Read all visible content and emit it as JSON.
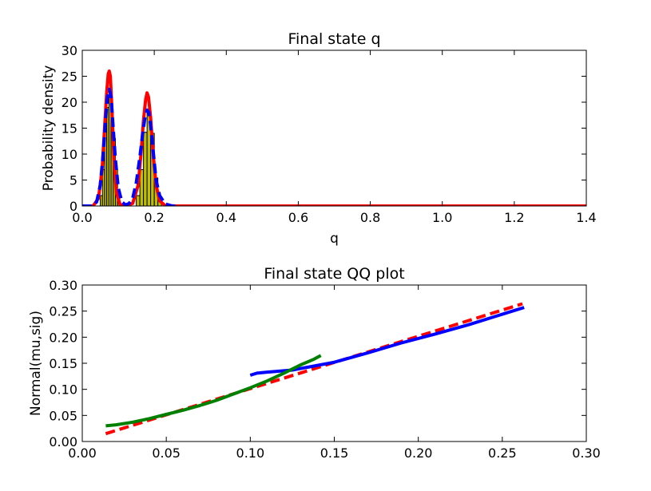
{
  "chart_data": [
    {
      "type": "bar",
      "title": "Final state q",
      "xlabel": "q",
      "ylabel": "Probability density",
      "xlim": [
        0.0,
        1.4
      ],
      "ylim": [
        0,
        30
      ],
      "xticks": [
        "0.0",
        "0.2",
        "0.4",
        "0.6",
        "0.8",
        "1.0",
        "1.2",
        "1.4"
      ],
      "yticks": [
        "0",
        "5",
        "10",
        "15",
        "20",
        "25",
        "30"
      ],
      "grid": false,
      "bar_color": "#bfbf00",
      "bars": [
        {
          "x0": 0.05,
          "x1": 0.056,
          "height": 2
        },
        {
          "x0": 0.056,
          "x1": 0.062,
          "height": 7
        },
        {
          "x0": 0.062,
          "x1": 0.068,
          "height": 15
        },
        {
          "x0": 0.068,
          "x1": 0.074,
          "height": 19
        },
        {
          "x0": 0.074,
          "x1": 0.08,
          "height": 21
        },
        {
          "x0": 0.08,
          "x1": 0.086,
          "height": 18
        },
        {
          "x0": 0.086,
          "x1": 0.092,
          "height": 13
        },
        {
          "x0": 0.092,
          "x1": 0.098,
          "height": 7
        },
        {
          "x0": 0.098,
          "x1": 0.104,
          "height": 2
        },
        {
          "x0": 0.15,
          "x1": 0.16,
          "height": 2
        },
        {
          "x0": 0.16,
          "x1": 0.17,
          "height": 7
        },
        {
          "x0": 0.17,
          "x1": 0.18,
          "height": 14.2
        },
        {
          "x0": 0.18,
          "x1": 0.19,
          "height": 18.2
        },
        {
          "x0": 0.19,
          "x1": 0.2,
          "height": 14
        },
        {
          "x0": 0.2,
          "x1": 0.21,
          "height": 5.4
        },
        {
          "x0": 0.21,
          "x1": 0.22,
          "height": 1
        }
      ],
      "series": [
        {
          "name": "",
          "color": "#ff0000",
          "style": "solid",
          "x": [
            0.0,
            0.03,
            0.045,
            0.055,
            0.062,
            0.068,
            0.072,
            0.075,
            0.078,
            0.082,
            0.088,
            0.095,
            0.105,
            0.12,
            0.14,
            0.155,
            0.163,
            0.17,
            0.176,
            0.18,
            0.184,
            0.19,
            0.197,
            0.205,
            0.215,
            0.23,
            0.26,
            0.3,
            1.4
          ],
          "y": [
            0,
            0,
            1.5,
            7,
            15,
            22,
            25.5,
            26,
            25,
            19,
            9,
            2.5,
            0.3,
            0,
            0.5,
            4,
            10,
            16.5,
            20.5,
            21.8,
            21,
            17,
            10,
            4,
            1,
            0.1,
            0,
            0,
            0
          ]
        },
        {
          "name": "",
          "color": "#0000ff",
          "style": "dashed",
          "x": [
            0.0,
            0.03,
            0.04,
            0.05,
            0.058,
            0.065,
            0.07,
            0.075,
            0.08,
            0.085,
            0.092,
            0.1,
            0.11,
            0.12,
            0.13,
            0.14,
            0.15,
            0.16,
            0.168,
            0.175,
            0.18,
            0.185,
            0.19,
            0.198,
            0.205,
            0.215,
            0.23,
            0.25,
            0.27
          ],
          "y": [
            0,
            0,
            0.8,
            4,
            10,
            17,
            21,
            22.5,
            21,
            16,
            9,
            3.5,
            0.8,
            0.2,
            0.5,
            1.5,
            4.5,
            9.5,
            14,
            17.5,
            18.5,
            18,
            15.5,
            10,
            5,
            2,
            0.4,
            0,
            0
          ]
        }
      ]
    },
    {
      "type": "line",
      "title": "Final state QQ plot",
      "xlabel": "",
      "ylabel": "Normal(mu,sig)",
      "xlim": [
        0.0,
        0.3
      ],
      "ylim": [
        0.0,
        0.3
      ],
      "xticks": [
        "0.00",
        "0.05",
        "0.10",
        "0.15",
        "0.20",
        "0.25",
        "0.30"
      ],
      "yticks": [
        "0.00",
        "0.05",
        "0.10",
        "0.15",
        "0.20",
        "0.25",
        "0.30"
      ],
      "grid": false,
      "series": [
        {
          "name": "",
          "color": "#ff0000",
          "style": "dashed",
          "x": [
            0.014,
            0.262
          ],
          "y": [
            0.015,
            0.264
          ]
        },
        {
          "name": "",
          "color": "#0000ff",
          "style": "solid",
          "x": [
            0.1,
            0.104,
            0.11,
            0.118,
            0.125,
            0.135,
            0.15,
            0.17,
            0.19,
            0.21,
            0.23,
            0.245,
            0.255,
            0.263
          ],
          "y": [
            0.127,
            0.131,
            0.133,
            0.135,
            0.137,
            0.143,
            0.152,
            0.17,
            0.189,
            0.206,
            0.224,
            0.239,
            0.249,
            0.257
          ]
        },
        {
          "name": "",
          "color": "#008000",
          "style": "solid",
          "x": [
            0.014,
            0.02,
            0.03,
            0.04,
            0.05,
            0.06,
            0.07,
            0.08,
            0.09,
            0.1,
            0.11,
            0.12,
            0.13,
            0.138,
            0.142
          ],
          "y": [
            0.03,
            0.032,
            0.037,
            0.044,
            0.052,
            0.06,
            0.069,
            0.079,
            0.091,
            0.103,
            0.116,
            0.131,
            0.147,
            0.158,
            0.165
          ]
        }
      ]
    }
  ]
}
